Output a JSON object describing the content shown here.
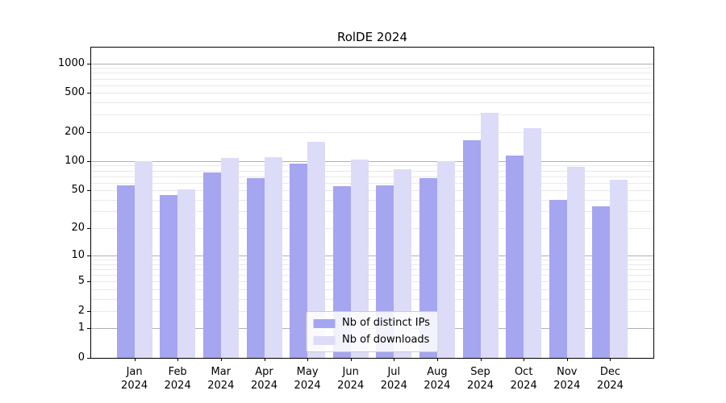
{
  "title": "RolDE 2024",
  "chart_data": {
    "type": "bar",
    "title": "RolDE 2024",
    "categories": [
      "Jan",
      "Feb",
      "Mar",
      "Apr",
      "May",
      "Jun",
      "Jul",
      "Aug",
      "Sep",
      "Oct",
      "Nov",
      "Dec"
    ],
    "category_year": "2024",
    "series": [
      {
        "name": "Nb of distinct IPs",
        "color": "#a5a5f0",
        "values": [
          56,
          45,
          77,
          67,
          94,
          55,
          56,
          67,
          163,
          114,
          40,
          34
        ]
      },
      {
        "name": "Nb of downloads",
        "color": "#dcdcf8",
        "values": [
          100,
          51,
          107,
          110,
          158,
          104,
          83,
          100,
          315,
          218,
          88,
          64
        ]
      }
    ],
    "yscale": "log1p",
    "ylim": [
      0,
      1450
    ],
    "y_ticks": [
      0,
      1,
      2,
      5,
      10,
      20,
      50,
      100,
      200,
      500,
      1000
    ],
    "xlabel": "",
    "ylabel": "",
    "grid": {
      "major_color": "#b0b0b0",
      "minor_color": "#e9e9e9",
      "vertical": false
    },
    "legend_position": "lower center"
  }
}
